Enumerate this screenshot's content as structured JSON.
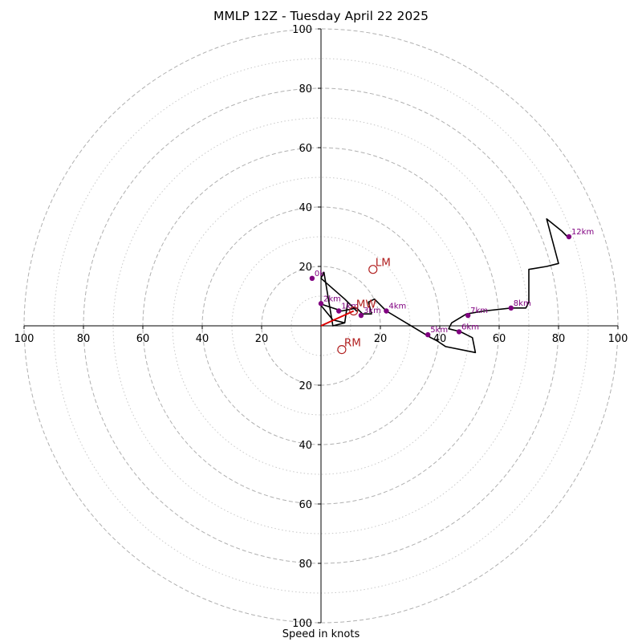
{
  "chart_data": {
    "type": "hodograph",
    "title": "MMLP 12Z - Tuesday April 22 2025",
    "xlabel": "Speed in knots",
    "range": [
      -100,
      100
    ],
    "ring_major": [
      20,
      40,
      60,
      80,
      100
    ],
    "ring_minor": [
      10,
      30,
      50,
      70,
      90
    ],
    "tick_labels": {
      "x": [
        "100",
        "80",
        "60",
        "40",
        "20",
        "20",
        "40",
        "60",
        "80",
        "100"
      ],
      "x_values": [
        -100,
        -80,
        -60,
        -40,
        -20,
        20,
        40,
        60,
        80,
        100
      ],
      "y": [
        "100",
        "80",
        "60",
        "40",
        "20",
        "20",
        "40",
        "60",
        "80",
        "100"
      ],
      "y_values": [
        100,
        80,
        60,
        40,
        20,
        -20,
        -40,
        -60,
        -80,
        -100
      ]
    },
    "trace": [
      [
        8,
        1
      ],
      [
        4,
        0
      ],
      [
        1,
        18
      ],
      [
        0,
        16
      ],
      [
        8,
        9
      ],
      [
        12,
        5
      ],
      [
        9,
        8
      ],
      [
        8,
        1
      ],
      [
        4,
        2
      ],
      [
        -0.5,
        7.5
      ],
      [
        7,
        5
      ],
      [
        12,
        6
      ],
      [
        14,
        4
      ],
      [
        17,
        4
      ],
      [
        16,
        8
      ],
      [
        18,
        9
      ],
      [
        22,
        5
      ],
      [
        37,
        -4
      ],
      [
        39,
        -5
      ],
      [
        42,
        -7
      ],
      [
        52,
        -9
      ],
      [
        51,
        -4
      ],
      [
        47,
        -2
      ],
      [
        43,
        -1
      ],
      [
        44,
        1
      ],
      [
        49,
        4
      ],
      [
        55,
        5
      ],
      [
        64,
        6
      ],
      [
        69,
        6
      ],
      [
        70,
        8
      ],
      [
        70,
        19
      ],
      [
        76,
        20
      ],
      [
        80,
        21
      ],
      [
        76,
        36
      ],
      [
        81,
        32
      ],
      [
        83,
        30
      ]
    ],
    "height_markers": [
      {
        "label": "0k",
        "u": -3,
        "v": 16
      },
      {
        "label": "1km",
        "u": 6,
        "v": 5
      },
      {
        "label": "2km",
        "u": 0,
        "v": 7.5
      },
      {
        "label": "3km",
        "u": 13.5,
        "v": 3.5
      },
      {
        "label": "4km",
        "u": 22,
        "v": 5
      },
      {
        "label": "5km",
        "u": 36,
        "v": -3
      },
      {
        "label": "6km",
        "u": 46.5,
        "v": -2
      },
      {
        "label": "7km",
        "u": 49.5,
        "v": 3.5
      },
      {
        "label": "8km",
        "u": 64,
        "v": 6
      },
      {
        "label": "12km",
        "u": 83.5,
        "v": 30
      }
    ],
    "storm_motion": [
      {
        "label": "LM",
        "u": 17.5,
        "v": 19
      },
      {
        "label": "MW",
        "u": 11,
        "v": 5
      },
      {
        "label": "RM",
        "u": 7,
        "v": -8
      }
    ],
    "mean_wind_vector": {
      "from": [
        0,
        0
      ],
      "to": [
        11,
        5
      ]
    },
    "colors": {
      "trace": "#000000",
      "markers": "#800080",
      "storm_motion": "#b22222",
      "vector": "#dd0000",
      "grid": "#b0b0b0"
    }
  }
}
